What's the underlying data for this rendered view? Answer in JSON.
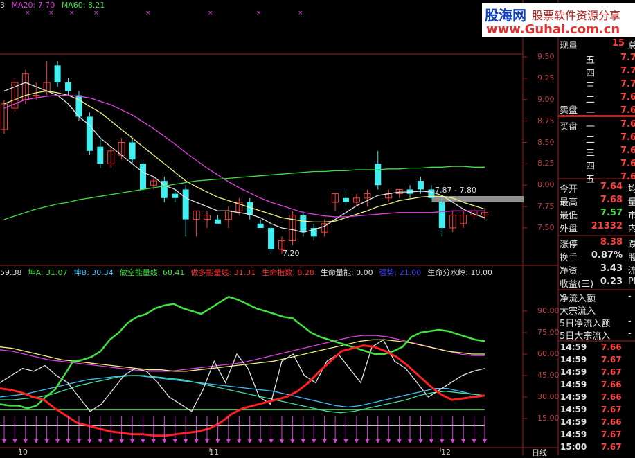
{
  "ma_legend": {
    "prefix": "3",
    "ma20": "MA20: 7.70",
    "ma60": "MA60: 8.21",
    "ma20_color": "#e040e0",
    "ma60_color": "#40e040"
  },
  "watermark": {
    "brand": "股海网",
    "slogan": "股票软件资源分享",
    "url": "www.Guhai.com.cn"
  },
  "price_axis": [
    "9.50",
    "9.25",
    "9.00",
    "8.75",
    "8.50",
    "8.25",
    "8.00",
    "7.75",
    "7.50"
  ],
  "indicator_axis": [
    "90.00",
    "75.00",
    "60.00",
    "45.00",
    "30.00",
    "15.00"
  ],
  "range_annotation": "7.87 - 7.80",
  "low_annotation": "7.20",
  "indicator_legend": [
    {
      "text": "59.38",
      "color": "#e0e0e0"
    },
    {
      "text": "坤A: 31.07",
      "color": "#40e040"
    },
    {
      "text": "坤B: 30.34",
      "color": "#40c0ff"
    },
    {
      "text": "做空能量线: 68.41",
      "color": "#40e040"
    },
    {
      "text": "做多能量线: 31.31",
      "color": "#ff3030"
    },
    {
      "text": "生命指数: 8.28",
      "color": "#ff3030"
    },
    {
      "text": "生命量能: 0.00",
      "color": "#e0e0e0"
    },
    {
      "text": "强势: 21.00",
      "color": "#4040ff"
    },
    {
      "text": "生命分水岭: 10.00",
      "color": "#e0e0e0"
    }
  ],
  "date_labels": [
    "10",
    "11",
    "12"
  ],
  "period_label": "日线",
  "quote": {
    "volume_label": "现量",
    "volume_value": "15",
    "volume_extra": "总",
    "sell_label": "卖盘",
    "buy_label": "买盘",
    "sell_levels": [
      {
        "level": "五",
        "price": "7.7"
      },
      {
        "level": "四",
        "price": "7.7"
      },
      {
        "level": "三",
        "price": "7.7"
      },
      {
        "level": "二",
        "price": "7.6"
      },
      {
        "level": "一",
        "price": "7.6"
      }
    ],
    "buy_levels": [
      {
        "level": "一",
        "price": "7.6"
      },
      {
        "level": "二",
        "price": "7.6"
      },
      {
        "level": "三",
        "price": "7.6"
      },
      {
        "level": "四",
        "price": "7.6"
      },
      {
        "level": "五",
        "price": "7.6"
      }
    ],
    "stats": [
      {
        "name": "今开",
        "value": "7.64",
        "color": "#ff4040",
        "extra": "均"
      },
      {
        "name": "最高",
        "value": "7.68",
        "color": "#ff4040",
        "extra": "量"
      },
      {
        "name": "最低",
        "value": "7.57",
        "color": "#40e040",
        "extra": "市"
      },
      {
        "name": "外盘",
        "value": "21332",
        "color": "#ff4040",
        "extra": "内"
      }
    ],
    "stats2": [
      {
        "name": "涨停",
        "value": "8.38",
        "color": "#ff4040",
        "extra": "跌"
      },
      {
        "name": "换手",
        "value": "0.87%",
        "color": "#e0e0e0",
        "extra": "股"
      },
      {
        "name": "净资",
        "value": "3.43",
        "color": "#e0e0e0",
        "extra": "流"
      },
      {
        "name": "收益(三)",
        "value": "0.23",
        "color": "#e0e0e0",
        "extra": "PE"
      }
    ],
    "flows": [
      {
        "name": "净流入额",
        "value": "-"
      },
      {
        "name": "大宗流入",
        "value": ""
      },
      {
        "name": "5日净流入额",
        "value": "-"
      },
      {
        "name": "5日大宗流入",
        "value": "-"
      }
    ],
    "ticks": [
      {
        "time": "14:59",
        "price": "7.66"
      },
      {
        "time": "14:59",
        "price": "7.67"
      },
      {
        "time": "14:59",
        "price": "7.67"
      },
      {
        "time": "14:59",
        "price": "7.66"
      },
      {
        "time": "14:59",
        "price": "7.66"
      },
      {
        "time": "14:59",
        "price": "7.67"
      },
      {
        "time": "14:59",
        "price": "7.66"
      },
      {
        "time": "14:59",
        "price": "7.67"
      },
      {
        "time": "15:00",
        "price": "7.67"
      }
    ]
  },
  "chart_data": {
    "type": "candlestick",
    "price_range": [
      7.35,
      9.6
    ],
    "candles": [
      {
        "o": 8.65,
        "h": 9.0,
        "l": 8.6,
        "c": 8.95
      },
      {
        "o": 8.9,
        "h": 9.25,
        "l": 8.85,
        "c": 9.2
      },
      {
        "o": 9.0,
        "h": 9.35,
        "l": 8.95,
        "c": 9.3
      },
      {
        "o": 9.05,
        "h": 9.2,
        "l": 9.0,
        "c": 9.05
      },
      {
        "o": 9.1,
        "h": 9.45,
        "l": 9.05,
        "c": 9.2
      },
      {
        "o": 9.4,
        "h": 9.45,
        "l": 9.15,
        "c": 9.2
      },
      {
        "o": 9.2,
        "h": 9.25,
        "l": 9.05,
        "c": 9.1
      },
      {
        "o": 9.05,
        "h": 9.1,
        "l": 8.75,
        "c": 8.8
      },
      {
        "o": 8.8,
        "h": 8.85,
        "l": 8.35,
        "c": 8.4
      },
      {
        "o": 8.45,
        "h": 8.55,
        "l": 8.2,
        "c": 8.25
      },
      {
        "o": 8.25,
        "h": 8.45,
        "l": 8.2,
        "c": 8.4
      },
      {
        "o": 8.35,
        "h": 8.55,
        "l": 8.3,
        "c": 8.5
      },
      {
        "o": 8.5,
        "h": 8.55,
        "l": 8.25,
        "c": 8.3
      },
      {
        "o": 8.25,
        "h": 8.3,
        "l": 7.9,
        "c": 7.95
      },
      {
        "o": 8.0,
        "h": 8.1,
        "l": 7.95,
        "c": 8.05
      },
      {
        "o": 8.05,
        "h": 8.1,
        "l": 7.8,
        "c": 7.85
      },
      {
        "o": 7.9,
        "h": 7.95,
        "l": 7.8,
        "c": 7.85
      },
      {
        "o": 7.95,
        "h": 8.0,
        "l": 7.4,
        "c": 7.6
      },
      {
        "o": 7.6,
        "h": 7.7,
        "l": 7.4,
        "c": 7.7
      },
      {
        "o": 7.6,
        "h": 7.7,
        "l": 7.5,
        "c": 7.65
      },
      {
        "o": 7.6,
        "h": 7.65,
        "l": 7.55,
        "c": 7.55
      },
      {
        "o": 7.6,
        "h": 7.75,
        "l": 7.5,
        "c": 7.7
      },
      {
        "o": 7.7,
        "h": 7.85,
        "l": 7.65,
        "c": 7.8
      },
      {
        "o": 7.8,
        "h": 7.85,
        "l": 7.6,
        "c": 7.65
      },
      {
        "o": 7.55,
        "h": 7.6,
        "l": 7.5,
        "c": 7.5
      },
      {
        "o": 7.5,
        "h": 7.55,
        "l": 7.2,
        "c": 7.25
      },
      {
        "o": 7.25,
        "h": 7.4,
        "l": 7.2,
        "c": 7.35
      },
      {
        "o": 7.35,
        "h": 7.7,
        "l": 7.3,
        "c": 7.65
      },
      {
        "o": 7.65,
        "h": 7.7,
        "l": 7.4,
        "c": 7.45
      },
      {
        "o": 7.5,
        "h": 7.55,
        "l": 7.35,
        "c": 7.4
      },
      {
        "o": 7.45,
        "h": 7.6,
        "l": 7.4,
        "c": 7.55
      },
      {
        "o": 7.8,
        "h": 7.9,
        "l": 7.7,
        "c": 7.9
      },
      {
        "o": 7.85,
        "h": 7.95,
        "l": 7.75,
        "c": 7.8
      },
      {
        "o": 7.8,
        "h": 7.9,
        "l": 7.75,
        "c": 7.85
      },
      {
        "o": 7.85,
        "h": 7.95,
        "l": 7.75,
        "c": 7.9
      },
      {
        "o": 8.25,
        "h": 8.4,
        "l": 7.95,
        "c": 8.0
      },
      {
        "o": 7.85,
        "h": 7.95,
        "l": 7.8,
        "c": 7.9
      },
      {
        "o": 7.9,
        "h": 7.95,
        "l": 7.85,
        "c": 7.95
      },
      {
        "o": 7.95,
        "h": 8.0,
        "l": 7.85,
        "c": 7.9
      },
      {
        "o": 8.05,
        "h": 8.1,
        "l": 7.9,
        "c": 7.95
      },
      {
        "o": 7.95,
        "h": 8.0,
        "l": 7.8,
        "c": 7.85
      },
      {
        "o": 7.8,
        "h": 7.85,
        "l": 7.4,
        "c": 7.5
      },
      {
        "o": 7.5,
        "h": 7.7,
        "l": 7.45,
        "c": 7.65
      },
      {
        "o": 7.55,
        "h": 7.7,
        "l": 7.5,
        "c": 7.65
      },
      {
        "o": 7.65,
        "h": 7.75,
        "l": 7.6,
        "c": 7.7
      },
      {
        "o": 7.65,
        "h": 7.7,
        "l": 7.6,
        "c": 7.68
      }
    ],
    "ma5": [
      9.1,
      9.15,
      9.2,
      9.15,
      9.1,
      9.05,
      8.95,
      8.8,
      8.7,
      8.55,
      8.45,
      8.35,
      8.25,
      8.15,
      8.1,
      8.0,
      7.95,
      7.85,
      7.8,
      7.75,
      7.7,
      7.7,
      7.68,
      7.66,
      7.62,
      7.55,
      7.5,
      7.48,
      7.45,
      7.48,
      7.52,
      7.6,
      7.68,
      7.76,
      7.82,
      7.88,
      7.9,
      7.92,
      7.92,
      7.93,
      7.92,
      7.88,
      7.8,
      7.72,
      7.66,
      7.62
    ],
    "ma10": [
      8.95,
      9.0,
      9.05,
      9.08,
      9.1,
      9.08,
      9.05,
      9.0,
      8.92,
      8.85,
      8.75,
      8.65,
      8.55,
      8.45,
      8.35,
      8.25,
      8.15,
      8.05,
      7.98,
      7.92,
      7.86,
      7.82,
      7.78,
      7.74,
      7.7,
      7.66,
      7.62,
      7.6,
      7.58,
      7.57,
      7.57,
      7.58,
      7.62,
      7.66,
      7.7,
      7.75,
      7.78,
      7.82,
      7.84,
      7.86,
      7.87,
      7.87,
      7.85,
      7.8,
      7.76,
      7.72
    ],
    "ma20": [
      8.9,
      8.95,
      9.0,
      9.02,
      9.04,
      9.05,
      9.05,
      9.04,
      9.02,
      8.98,
      8.94,
      8.88,
      8.82,
      8.74,
      8.66,
      8.57,
      8.48,
      8.38,
      8.29,
      8.2,
      8.12,
      8.04,
      7.97,
      7.91,
      7.85,
      7.8,
      7.76,
      7.72,
      7.68,
      7.66,
      7.64,
      7.63,
      7.63,
      7.64,
      7.65,
      7.66,
      7.67,
      7.68,
      7.68,
      7.68,
      7.68,
      7.69,
      7.7,
      7.7,
      7.7,
      7.7
    ],
    "ma60": [
      7.6,
      7.64,
      7.68,
      7.72,
      7.75,
      7.78,
      7.8,
      7.83,
      7.85,
      7.87,
      7.89,
      7.91,
      7.93,
      7.95,
      7.97,
      7.99,
      8.01,
      8.03,
      8.05,
      8.06,
      8.07,
      8.08,
      8.09,
      8.1,
      8.11,
      8.12,
      8.13,
      8.14,
      8.15,
      8.16,
      8.16,
      8.17,
      8.17,
      8.18,
      8.18,
      8.18,
      8.19,
      8.19,
      8.2,
      8.2,
      8.21,
      8.21,
      8.22,
      8.22,
      8.21,
      8.21
    ],
    "indicator_range": [
      0,
      100
    ],
    "short_energy": [
      25,
      24,
      24,
      22,
      24,
      30,
      35,
      45,
      55,
      56,
      58,
      62,
      70,
      75,
      82,
      86,
      88,
      92,
      94,
      95,
      92,
      90,
      88,
      92,
      96,
      100,
      98,
      95,
      92,
      90,
      88,
      86,
      85,
      80,
      75,
      72,
      70,
      68,
      66,
      64,
      62,
      60,
      60,
      62,
      65,
      72,
      75,
      76,
      77,
      76,
      74,
      72,
      70,
      69
    ],
    "long_energy": [
      36,
      35,
      33,
      30,
      28,
      22,
      17,
      12,
      10,
      8,
      6,
      5,
      4,
      4,
      3,
      3,
      4,
      5,
      6,
      8,
      12,
      18,
      22,
      24,
      26,
      28,
      30,
      34,
      40,
      48,
      55,
      62,
      64,
      66,
      65,
      62,
      58,
      52,
      45,
      38,
      32,
      28,
      29,
      30,
      31
    ],
    "pink_line": [
      63,
      62,
      60,
      58,
      56,
      55,
      54,
      53,
      52,
      51,
      50,
      49,
      48,
      48,
      48,
      49,
      50,
      51,
      52,
      53,
      54,
      56,
      58,
      60,
      62,
      64,
      66,
      68,
      70,
      72,
      73,
      73,
      72,
      70,
      68,
      66,
      64,
      62,
      60,
      59,
      59
    ],
    "yellow_line": [
      65,
      64,
      62,
      60,
      58,
      56,
      55,
      54,
      53,
      52,
      51,
      50,
      49,
      49,
      48,
      48,
      49,
      50,
      51,
      52,
      53,
      54,
      55,
      57,
      59,
      61,
      63,
      65,
      67,
      69,
      70,
      70,
      69,
      68,
      66,
      64,
      62,
      61,
      60,
      60
    ],
    "blue_line": [
      30,
      31,
      32,
      34,
      36,
      38,
      40,
      42,
      43,
      44,
      45,
      45,
      44,
      43,
      42,
      41,
      40,
      39,
      38,
      37,
      36,
      35,
      34,
      32,
      30,
      28,
      26,
      24,
      23,
      24,
      26,
      28,
      30,
      32,
      34,
      36,
      36,
      34,
      32,
      31
    ],
    "cyan_line": [
      28,
      28,
      29,
      30,
      32,
      35,
      38,
      40,
      42,
      44,
      45,
      45,
      44,
      43,
      42,
      40,
      38,
      36,
      34,
      32,
      30,
      28,
      26,
      24,
      22,
      20,
      19,
      20,
      22,
      24,
      26,
      28,
      31,
      33,
      34,
      33,
      32,
      31
    ],
    "white_line": [
      40,
      45,
      50,
      48,
      52,
      45,
      40,
      30,
      20,
      25,
      35,
      45,
      50,
      48,
      40,
      30,
      25,
      20,
      35,
      55,
      40,
      60,
      50,
      30,
      25,
      55,
      60,
      45,
      40,
      55,
      60,
      50,
      40,
      65,
      70,
      55,
      50,
      40,
      30,
      35,
      40,
      45,
      48,
      50
    ]
  }
}
